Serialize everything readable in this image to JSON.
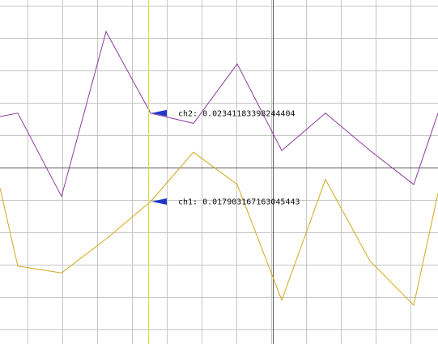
{
  "chart_data": {
    "type": "line",
    "xlim": [
      0,
      541
    ],
    "ylim": [
      -1,
      1
    ],
    "grid": true,
    "x": [
      0,
      22,
      76,
      131,
      186,
      239,
      293,
      348,
      402,
      457,
      511,
      541
    ],
    "series": [
      {
        "name": "ch2",
        "color": "#8e3a9e",
        "values": [
          0.3,
          0.32,
          -0.17,
          0.8,
          0.32,
          0.26,
          0.61,
          0.1,
          0.32,
          0.1,
          -0.1,
          0.32
        ]
      },
      {
        "name": "ch1",
        "color": "#d4a81a",
        "values": [
          -0.12,
          -0.58,
          -0.62,
          -0.42,
          -0.2,
          0.09,
          -0.1,
          -0.78,
          -0.07,
          -0.55,
          -0.81,
          -0.15
        ]
      }
    ],
    "cursor": {
      "x": 183,
      "color": "#d8e040"
    },
    "markers": [
      {
        "series": "ch2",
        "y": 0.32,
        "label": "ch2: 0.02341183398244404",
        "color": "#2438c8"
      },
      {
        "series": "ch1",
        "y": -0.2,
        "label": "ch1: 0.017903167163045443",
        "color": "#2438c8"
      }
    ],
    "colors": {
      "grid": "#c6c6c6",
      "axis": "#5a5a5a",
      "background": "#ffffff"
    }
  }
}
